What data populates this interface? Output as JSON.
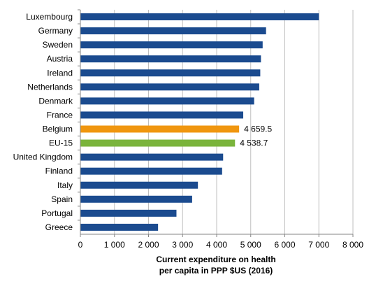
{
  "chart_data": {
    "type": "bar",
    "orientation": "horizontal",
    "categories": [
      "Luxembourg",
      "Germany",
      "Sweden",
      "Austria",
      "Ireland",
      "Netherlands",
      "Denmark",
      "France",
      "Belgium",
      "EU-15",
      "United Kingdom",
      "Finland",
      "Italy",
      "Spain",
      "Portugal",
      "Greece"
    ],
    "values": [
      7000,
      5450,
      5350,
      5300,
      5280,
      5250,
      5100,
      4780,
      4659.5,
      4538.7,
      4190,
      4160,
      3450,
      3280,
      2820,
      2280
    ],
    "data_labels": [
      {
        "category": "Belgium",
        "text": "4 659.5"
      },
      {
        "category": "EU-15",
        "text": "4 538.7"
      }
    ],
    "highlight_colors": {
      "Belgium": "#f0960f",
      "EU-15": "#7ab43c"
    },
    "bar_color": "#1b4b8f",
    "xlim": [
      0,
      8000
    ],
    "xticks": [
      0,
      1000,
      2000,
      3000,
      4000,
      5000,
      6000,
      7000,
      8000
    ],
    "xtick_labels": [
      "0",
      "1 000",
      "2 000",
      "3 000",
      "4 000",
      "5 000",
      "6 000",
      "7 000",
      "8 000"
    ],
    "xlabel_lines": [
      "Current expenditure on health",
      "per capita in PPP $US (2016)"
    ],
    "ylabel": "",
    "title": "",
    "grid": "vertical"
  }
}
